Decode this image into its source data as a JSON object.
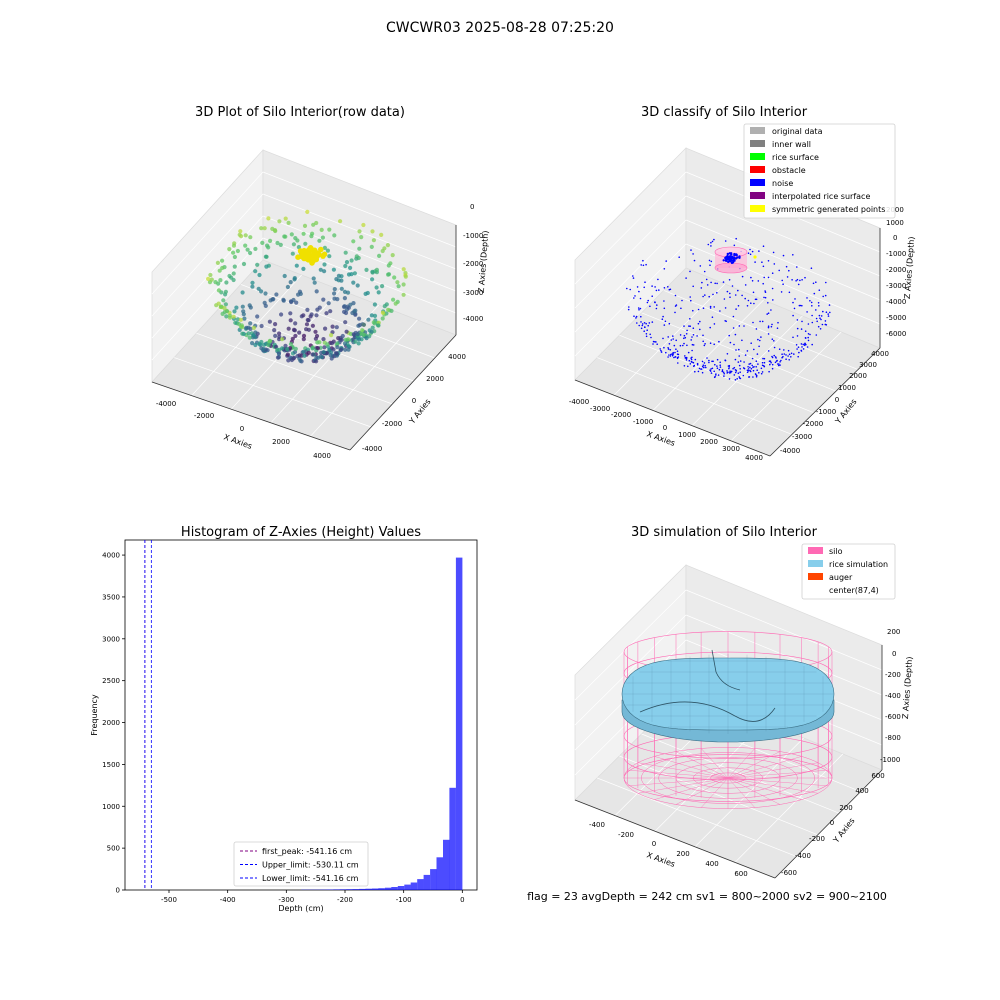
{
  "suptitle": "CWCWR03 2025-08-28 07:25:20",
  "footer": "flag = 23  avgDepth = 242 cm  sv1 = 800~2000  sv2 = 900~2100",
  "colors": {
    "silo": "#ff69b4",
    "rice": "#87ceeb",
    "auger": "#ff4500",
    "noise": "#0000ff",
    "hist": "#0000ff",
    "first_peak": "#800080",
    "limit": "#0000ff"
  },
  "chart_data": [
    {
      "id": "raw",
      "type": "scatter",
      "title": "3D Plot of Silo Interior(row data)",
      "xlabel": "X Axies",
      "ylabel": "Y Axies",
      "zlabel": "Z Axies (Depth)",
      "x_ticks": [
        "-4000",
        "-2000",
        "0",
        "2000",
        "4000"
      ],
      "y_ticks": [
        "-4000",
        "-2000",
        "0",
        "2000",
        "4000"
      ],
      "z_ticks": [
        "0",
        "-1000",
        "-2000",
        "-3000",
        "-4000"
      ],
      "xlim": [
        -4500,
        4500
      ],
      "ylim": [
        -4500,
        4500
      ],
      "zlim": [
        -4800,
        200
      ],
      "colormap": "viridis"
    },
    {
      "id": "classify",
      "type": "scatter",
      "title": "3D classify of Silo Interior",
      "xlabel": "X Axies",
      "ylabel": "Y Axies",
      "zlabel": "Z Axies (Depth)",
      "x_ticks": [
        "-4000",
        "-3000",
        "-2000",
        "-1000",
        "0",
        "1000",
        "2000",
        "3000",
        "4000"
      ],
      "y_ticks": [
        "-4000",
        "-3000",
        "-2000",
        "-1000",
        "0",
        "1000",
        "2000",
        "3000",
        "4000"
      ],
      "z_ticks": [
        "2000",
        "1000",
        "0",
        "-1000",
        "-2000",
        "-3000",
        "-4000",
        "-5000",
        "-6000"
      ],
      "xlim": [
        -4200,
        4200
      ],
      "ylim": [
        -4200,
        4200
      ],
      "zlim": [
        -6500,
        2300
      ],
      "legend": [
        {
          "label": "original data",
          "color": "#b0b0b0"
        },
        {
          "label": "inner wall",
          "color": "#808080"
        },
        {
          "label": "rice surface",
          "color": "#00ff00"
        },
        {
          "label": "obstacle",
          "color": "#ff0000"
        },
        {
          "label": "noise",
          "color": "#0000ff"
        },
        {
          "label": "interpolated rice surface",
          "color": "#800080"
        },
        {
          "label": "symmetric generated points",
          "color": "#ffff00"
        }
      ]
    },
    {
      "id": "hist",
      "type": "bar",
      "title": "Histogram of Z-Axies (Height) Values",
      "xlabel": "Depth (cm)",
      "ylabel": "Frequency",
      "xlim": [
        -575,
        25
      ],
      "ylim": [
        0,
        4180
      ],
      "x_ticks": [
        -500,
        -400,
        -300,
        -200,
        -100,
        0
      ],
      "y_ticks": [
        0,
        500,
        1000,
        1500,
        2000,
        2500,
        3000,
        3500,
        4000
      ],
      "bin_width": 11,
      "bins": [
        {
          "x0": -275,
          "count": 3
        },
        {
          "x0": -264,
          "count": 4
        },
        {
          "x0": -253,
          "count": 4
        },
        {
          "x0": -242,
          "count": 5
        },
        {
          "x0": -231,
          "count": 6
        },
        {
          "x0": -220,
          "count": 7
        },
        {
          "x0": -209,
          "count": 8
        },
        {
          "x0": -198,
          "count": 9
        },
        {
          "x0": -187,
          "count": 11
        },
        {
          "x0": -176,
          "count": 13
        },
        {
          "x0": -165,
          "count": 15
        },
        {
          "x0": -154,
          "count": 18
        },
        {
          "x0": -143,
          "count": 22
        },
        {
          "x0": -132,
          "count": 28
        },
        {
          "x0": -121,
          "count": 36
        },
        {
          "x0": -110,
          "count": 48
        },
        {
          "x0": -99,
          "count": 65
        },
        {
          "x0": -88,
          "count": 90
        },
        {
          "x0": -77,
          "count": 130
        },
        {
          "x0": -66,
          "count": 180
        },
        {
          "x0": -55,
          "count": 250
        },
        {
          "x0": -44,
          "count": 390
        },
        {
          "x0": -33,
          "count": 600
        },
        {
          "x0": -22,
          "count": 1220
        },
        {
          "x0": -11,
          "count": 3970
        }
      ],
      "vlines": [
        {
          "x": -541.16,
          "label": "first_peak: -541.16 cm",
          "color": "#800080"
        },
        {
          "x": -530.11,
          "label": "Upper_limit: -530.11 cm",
          "color": "#0000ff"
        },
        {
          "x": -541.16,
          "label": "Lower_limit: -541.16 cm",
          "color": "#0000ff"
        }
      ]
    },
    {
      "id": "sim",
      "type": "surface",
      "title": "3D simulation of Silo Interior",
      "xlabel": "X Axies",
      "ylabel": "Y Axies",
      "zlabel": "Z Axies (Depth)",
      "x_ticks": [
        "-400",
        "-200",
        "0",
        "200",
        "400",
        "600"
      ],
      "y_ticks": [
        "-600",
        "-400",
        "-200",
        "0",
        "200",
        "400",
        "600"
      ],
      "z_ticks": [
        "200",
        "0",
        "-200",
        "-400",
        "-600",
        "-800",
        "-1000"
      ],
      "xlim": [
        -500,
        700
      ],
      "ylim": [
        -650,
        650
      ],
      "zlim": [
        -1050,
        300
      ],
      "legend": [
        {
          "label": "silo",
          "color": "#ff69b4"
        },
        {
          "label": "rice simulation",
          "color": "#87ceeb"
        },
        {
          "label": "auger",
          "color": "#ff4500"
        },
        {
          "label": "center(87,4)",
          "color": "none"
        }
      ]
    }
  ]
}
